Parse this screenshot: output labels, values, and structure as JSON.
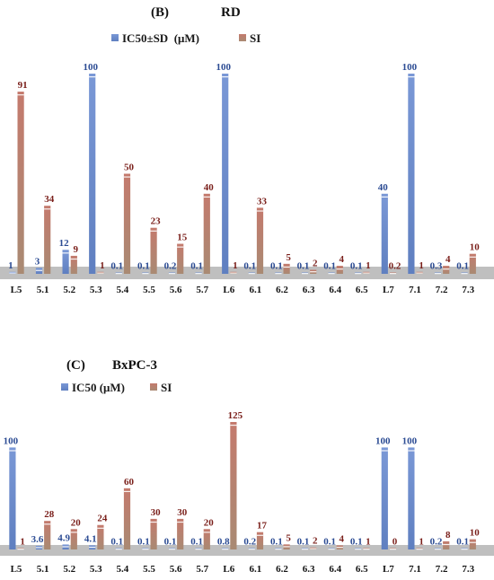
{
  "colors": {
    "ic50_bar": "#6f8fcf",
    "si_bar_top": "#c47a6d",
    "si_bar_bottom": "#a98a73",
    "ic50_label": "#2b4b93",
    "si_label": "#7a1f1a",
    "axis_band": "#bfbfbf"
  },
  "chart_data": [
    {
      "type": "bar",
      "panel": "(B)",
      "cell_line": "RD",
      "legend_position": "top-center",
      "grid": false,
      "categories": [
        "L5",
        "5.1",
        "5.2",
        "5.3",
        "5.4",
        "5.5",
        "5.6",
        "5.7",
        "L6",
        "6.1",
        "6.2",
        "6.3",
        "6.4",
        "6.5",
        "L7",
        "7.1",
        "7.2",
        "7.3"
      ],
      "ylim": [
        0,
        100
      ],
      "series": [
        {
          "name": "IC50±SD  (μM)",
          "values": [
            1,
            3,
            12,
            100,
            0.1,
            0.1,
            0.2,
            0.1,
            100,
            0.1,
            0.1,
            0.1,
            0.1,
            0.1,
            40,
            100,
            0.3,
            0.1
          ],
          "labels": [
            "1",
            "3",
            "12",
            "100",
            "0.1",
            "0.1",
            "0.2",
            "0.1",
            "100",
            "0.1",
            "0.1",
            "0.1",
            "0.1",
            "0.1",
            "40",
            "100",
            "0.3",
            "0.1"
          ]
        },
        {
          "name": "SI",
          "values": [
            91,
            34,
            9,
            1,
            50,
            23,
            15,
            40,
            1,
            33,
            5,
            2,
            4,
            1,
            0.2,
            1,
            4,
            10
          ],
          "labels": [
            "91",
            "34",
            "9",
            "1",
            "50",
            "23",
            "15",
            "40",
            "1",
            "33",
            "5",
            "2",
            "4",
            "1",
            "0.2",
            "1",
            "4",
            "10"
          ]
        }
      ]
    },
    {
      "type": "bar",
      "panel": "(C)",
      "cell_line": "BxPC-3",
      "legend_position": "top-left",
      "grid": false,
      "categories": [
        "L5",
        "5.1",
        "5.2",
        "5.3",
        "5.4",
        "5.5",
        "5.6",
        "5.7",
        "L6",
        "6.1",
        "6.2",
        "6.3",
        "6.4",
        "6.5",
        "L7",
        "7.1",
        "7.2",
        "7.3"
      ],
      "ylim": [
        0,
        125
      ],
      "series": [
        {
          "name": "IC50 (μM)",
          "values": [
            100,
            3.6,
            4.9,
            4.1,
            0.1,
            0.1,
            0.1,
            0.1,
            0.8,
            0.2,
            0.1,
            0.1,
            0.1,
            0.1,
            100,
            100,
            0.2,
            0.1
          ],
          "labels": [
            "100",
            "3.6",
            "4.9",
            "4.1",
            "0.1",
            "0.1",
            "0.1",
            "0.1",
            "0.8",
            "0.2",
            "0.1",
            "0.1",
            "0.1",
            "0.1",
            "100",
            "100",
            "0.2",
            "0.1"
          ]
        },
        {
          "name": "SI",
          "values": [
            1,
            28,
            20,
            24,
            60,
            30,
            30,
            20,
            125,
            17,
            5,
            2,
            4,
            1,
            0,
            1,
            8,
            10
          ],
          "labels": [
            "1",
            "28",
            "20",
            "24",
            "60",
            "30",
            "30",
            "20",
            "125",
            "17",
            "5",
            "2",
            "4",
            "1",
            "0",
            "1",
            "8",
            "10"
          ]
        }
      ]
    }
  ]
}
